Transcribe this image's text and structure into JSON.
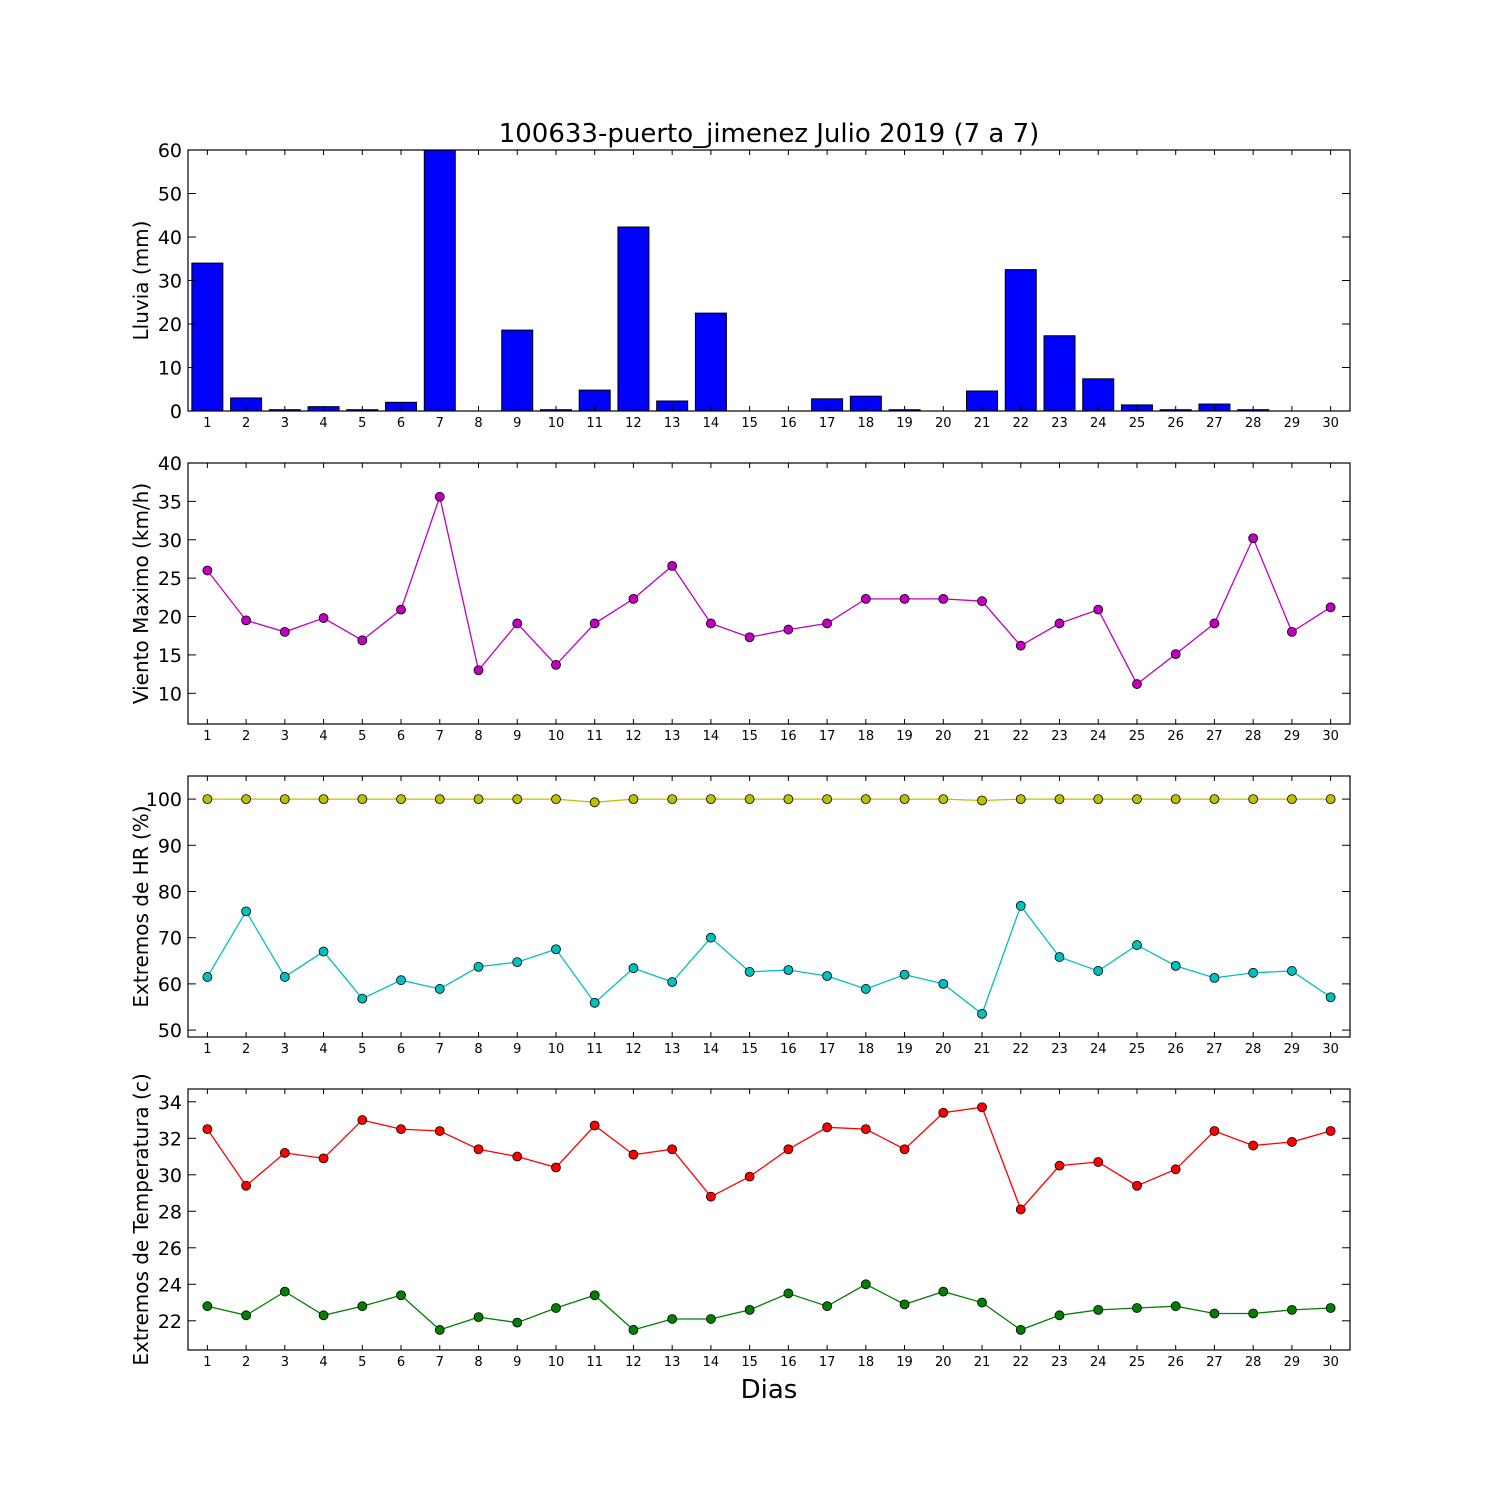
{
  "figure": {
    "title": "100633-puerto_jimenez Julio 2019  (7 a 7)",
    "xlabel": "Dias"
  },
  "chart_data": [
    {
      "type": "bar",
      "title": "100633-puerto_jimenez Julio 2019  (7 a 7)",
      "xlabel": "",
      "ylabel": "Lluvia (mm)",
      "categories": [
        1,
        2,
        3,
        4,
        5,
        6,
        7,
        8,
        9,
        10,
        11,
        12,
        13,
        14,
        15,
        16,
        17,
        18,
        19,
        20,
        21,
        22,
        23,
        24,
        25,
        26,
        27,
        28,
        29,
        30
      ],
      "xlim": [
        0.5,
        30.5
      ],
      "ylim": [
        0,
        60
      ],
      "yticks": [
        0,
        10,
        20,
        30,
        40,
        50,
        60
      ],
      "grid": false,
      "series": [
        {
          "color": "#0000ff",
          "values": [
            34.0,
            3.0,
            0.3,
            1.0,
            0.3,
            2.0,
            60.0,
            0.0,
            18.6,
            0.3,
            4.8,
            42.3,
            2.3,
            22.5,
            0.0,
            0.0,
            2.8,
            3.4,
            0.3,
            0.0,
            4.6,
            32.5,
            17.3,
            7.4,
            1.4,
            0.3,
            1.6,
            0.3,
            0.0,
            0.0
          ]
        }
      ]
    },
    {
      "type": "line",
      "ylabel": "Viento Maximo (km/h)",
      "x": [
        1,
        2,
        3,
        4,
        5,
        6,
        7,
        8,
        9,
        10,
        11,
        12,
        13,
        14,
        15,
        16,
        17,
        18,
        19,
        20,
        21,
        22,
        23,
        24,
        25,
        26,
        27,
        28,
        29,
        30
      ],
      "xlim": [
        0.5,
        30.5
      ],
      "ylim": [
        6,
        40
      ],
      "yticks": [
        10,
        15,
        20,
        25,
        30,
        35,
        40
      ],
      "grid": false,
      "series": [
        {
          "color": "#bf00bf",
          "values": [
            26.0,
            19.5,
            18.0,
            19.8,
            16.9,
            20.9,
            35.6,
            13.0,
            19.1,
            13.7,
            19.1,
            22.3,
            26.6,
            19.1,
            17.3,
            18.3,
            19.1,
            22.3,
            22.3,
            22.3,
            22.0,
            16.2,
            19.1,
            20.9,
            11.2,
            15.1,
            19.1,
            30.2,
            18.0,
            21.2
          ]
        }
      ]
    },
    {
      "type": "line",
      "ylabel": "Extremos de HR (%)",
      "x": [
        1,
        2,
        3,
        4,
        5,
        6,
        7,
        8,
        9,
        10,
        11,
        12,
        13,
        14,
        15,
        16,
        17,
        18,
        19,
        20,
        21,
        22,
        23,
        24,
        25,
        26,
        27,
        28,
        29,
        30
      ],
      "xlim": [
        0.5,
        30.5
      ],
      "ylim": [
        48.5,
        105
      ],
      "yticks": [
        50,
        60,
        70,
        80,
        90,
        100
      ],
      "grid": false,
      "series": [
        {
          "color": "#bfbf00",
          "values": [
            100,
            100,
            100,
            100,
            100,
            100,
            100,
            100,
            100,
            100,
            99.3,
            100,
            100,
            100,
            100,
            100,
            100,
            100,
            100,
            100,
            99.7,
            100,
            100,
            100,
            100,
            100,
            100,
            100,
            100,
            100
          ]
        },
        {
          "color": "#00bfbf",
          "values": [
            61.5,
            75.7,
            61.5,
            67.0,
            56.8,
            60.8,
            58.9,
            63.7,
            64.7,
            67.5,
            55.9,
            63.4,
            60.4,
            70.0,
            62.6,
            63.0,
            61.7,
            58.9,
            62.0,
            60.0,
            53.5,
            76.9,
            65.8,
            62.8,
            68.4,
            63.9,
            61.3,
            62.4,
            62.8,
            57.1
          ]
        }
      ]
    },
    {
      "type": "line",
      "ylabel": "Extremos de Temperatura (c)",
      "x": [
        1,
        2,
        3,
        4,
        5,
        6,
        7,
        8,
        9,
        10,
        11,
        12,
        13,
        14,
        15,
        16,
        17,
        18,
        19,
        20,
        21,
        22,
        23,
        24,
        25,
        26,
        27,
        28,
        29,
        30
      ],
      "xlim": [
        0.5,
        30.5
      ],
      "ylim": [
        20.4,
        34.7
      ],
      "yticks": [
        22,
        24,
        26,
        28,
        30,
        32,
        34
      ],
      "grid": false,
      "series": [
        {
          "color": "#ff0000",
          "values": [
            32.5,
            29.4,
            31.2,
            30.9,
            33.0,
            32.5,
            32.4,
            31.4,
            31.0,
            30.4,
            32.7,
            31.1,
            31.4,
            28.8,
            29.9,
            31.4,
            32.6,
            32.5,
            31.4,
            33.4,
            33.7,
            28.1,
            30.5,
            30.7,
            29.4,
            30.3,
            32.4,
            31.6,
            31.8,
            32.4
          ]
        },
        {
          "color": "#007f00",
          "values": [
            22.8,
            22.3,
            23.6,
            22.3,
            22.8,
            23.4,
            21.5,
            22.2,
            21.9,
            22.7,
            23.4,
            21.5,
            22.1,
            22.1,
            22.6,
            23.5,
            22.8,
            24.0,
            22.9,
            23.6,
            23.0,
            21.5,
            22.3,
            22.6,
            22.7,
            22.8,
            22.4,
            22.4,
            22.6,
            22.7
          ]
        }
      ]
    }
  ]
}
